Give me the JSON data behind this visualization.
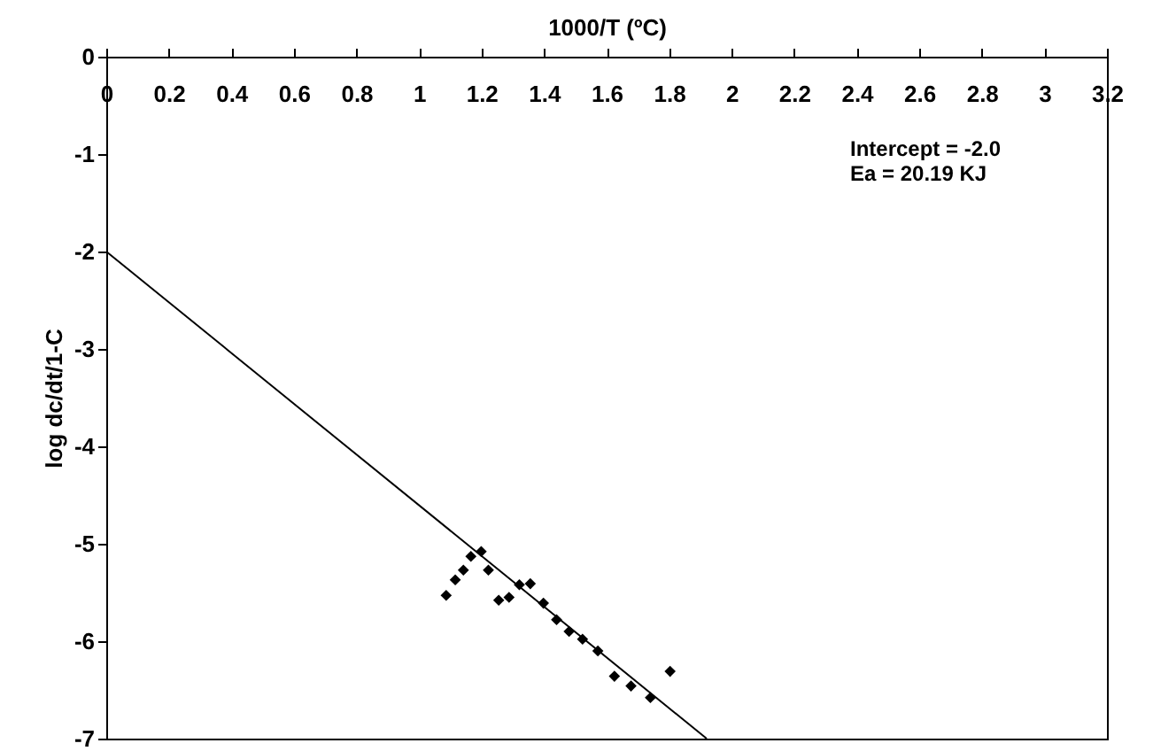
{
  "chart_data": {
    "type": "scatter",
    "xlabel": "1000/T (ºC)",
    "ylabel": "log dc/dt/1-C",
    "annotations": [
      "Intercept = -2.0",
      "Ea = 20.19 KJ"
    ],
    "xlim": [
      0,
      3.2
    ],
    "xticks": [
      0,
      0.2,
      0.4,
      0.6,
      0.8,
      1,
      1.2,
      1.4,
      1.6,
      1.8,
      2,
      2.2,
      2.4,
      2.6,
      2.8,
      3,
      3.2
    ],
    "ylim": [
      -7,
      0
    ],
    "yticks": [
      -7,
      -6,
      -5,
      -4,
      -3,
      -2,
      -1,
      0
    ],
    "grid": false,
    "marker": "diamond",
    "series": [
      {
        "color": "#000000",
        "x": [
          1.087,
          1.116,
          1.142,
          1.166,
          1.199,
          1.222,
          1.255,
          1.288,
          1.321,
          1.356,
          1.398,
          1.44,
          1.48,
          1.523,
          1.572,
          1.625,
          1.678,
          1.74,
          1.803
        ],
        "values": [
          -5.53,
          -5.37,
          -5.27,
          -5.13,
          -5.08,
          -5.27,
          -5.58,
          -5.55,
          -5.42,
          -5.41,
          -5.61,
          -5.78,
          -5.9,
          -5.98,
          -6.1,
          -6.36,
          -6.46,
          -6.58,
          -6.31
        ]
      },
      {
        "type": "line",
        "color": "#000000",
        "line_style": "solid",
        "marker": "none",
        "x": [
          0,
          1.92
        ],
        "values": [
          -2,
          -7
        ]
      }
    ]
  }
}
